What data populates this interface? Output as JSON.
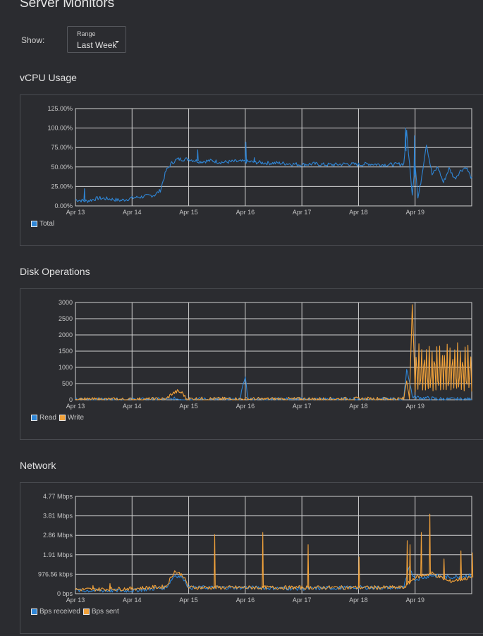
{
  "page": {
    "title": "Server Monitors"
  },
  "filter": {
    "show_label": "Show:",
    "range_caption": "Range",
    "range_value": "Last Week"
  },
  "colors": {
    "background": "#2b2c30",
    "grid": "#d0d0d0",
    "read": "#2f86d6",
    "write": "#f2a23a"
  },
  "sections": {
    "cpu": {
      "title": "vCPU Usage"
    },
    "disk": {
      "title": "Disk Operations"
    },
    "network": {
      "title": "Network"
    }
  },
  "chart_data": [
    {
      "id": "cpu",
      "type": "line",
      "x": [
        "Apr 13",
        "Apr 14",
        "Apr 15",
        "Apr 16",
        "Apr 17",
        "Apr 18",
        "Apr 19"
      ],
      "yticks": [
        "125.00%",
        "100.00%",
        "75.00%",
        "50.00%",
        "25.00%",
        "0.00%"
      ],
      "ylim": [
        0,
        125
      ],
      "grid": true,
      "legend": "bottom-left",
      "series": [
        {
          "name": "Total",
          "color": "#2f86d6",
          "points": [
            [
              0,
              8
            ],
            [
              0.2,
              6
            ],
            [
              0.4,
              10
            ],
            [
              0.6,
              9
            ],
            [
              0.8,
              7
            ],
            [
              1.0,
              10
            ],
            [
              1.2,
              12
            ],
            [
              1.4,
              14
            ],
            [
              1.5,
              20
            ],
            [
              1.6,
              45
            ],
            [
              1.7,
              55
            ],
            [
              1.8,
              60
            ],
            [
              2.0,
              60
            ],
            [
              2.2,
              57
            ],
            [
              2.4,
              58
            ],
            [
              2.6,
              56
            ],
            [
              2.8,
              57
            ],
            [
              3.0,
              57
            ],
            [
              3.2,
              56
            ],
            [
              3.4,
              55
            ],
            [
              3.6,
              55
            ],
            [
              3.8,
              54
            ],
            [
              4.0,
              53
            ],
            [
              4.2,
              54
            ],
            [
              4.4,
              53
            ],
            [
              4.6,
              53
            ],
            [
              4.8,
              54
            ],
            [
              5.0,
              53
            ],
            [
              5.2,
              54
            ],
            [
              5.4,
              53
            ],
            [
              5.6,
              53
            ],
            [
              5.8,
              54
            ],
            [
              5.85,
              95
            ],
            [
              5.9,
              55
            ],
            [
              5.95,
              15
            ],
            [
              6.0,
              55
            ],
            [
              6.05,
              10
            ],
            [
              6.1,
              30
            ],
            [
              6.2,
              80
            ],
            [
              6.3,
              40
            ],
            [
              6.4,
              50
            ],
            [
              6.5,
              30
            ],
            [
              6.6,
              48
            ],
            [
              6.7,
              35
            ],
            [
              6.8,
              45
            ],
            [
              6.9,
              50
            ],
            [
              7.0,
              35
            ]
          ],
          "spikes": [
            [
              0.15,
              22
            ],
            [
              2.15,
              72
            ],
            [
              3.0,
              82
            ],
            [
              3.15,
              62
            ],
            [
              5.82,
              100
            ],
            [
              5.98,
              90
            ]
          ]
        }
      ]
    },
    {
      "id": "disk",
      "type": "line",
      "x": [
        "Apr 13",
        "Apr 14",
        "Apr 15",
        "Apr 16",
        "Apr 17",
        "Apr 18",
        "Apr 19"
      ],
      "yticks": [
        "3000",
        "2500",
        "2000",
        "1500",
        "1000",
        "500",
        "0"
      ],
      "ylim": [
        0,
        3000
      ],
      "grid": true,
      "legend": "bottom-left",
      "series": [
        {
          "name": "Read",
          "color": "#2f86d6",
          "points": [
            [
              0,
              5
            ],
            [
              1.0,
              5
            ],
            [
              1.6,
              10
            ],
            [
              1.8,
              30
            ],
            [
              2.0,
              20
            ],
            [
              2.2,
              15
            ],
            [
              2.9,
              10
            ],
            [
              3.0,
              700
            ],
            [
              3.05,
              20
            ],
            [
              4.0,
              15
            ],
            [
              5.0,
              15
            ],
            [
              5.8,
              20
            ],
            [
              5.85,
              950
            ],
            [
              5.9,
              600
            ],
            [
              5.95,
              100
            ],
            [
              6.1,
              60
            ],
            [
              6.3,
              40
            ],
            [
              6.5,
              20
            ],
            [
              7.0,
              10
            ]
          ]
        },
        {
          "name": "Write",
          "color": "#f2a23a",
          "points": [
            [
              0,
              10
            ],
            [
              1.0,
              10
            ],
            [
              1.6,
              20
            ],
            [
              1.7,
              180
            ],
            [
              1.8,
              260
            ],
            [
              1.9,
              200
            ],
            [
              1.95,
              40
            ],
            [
              2.0,
              30
            ],
            [
              2.5,
              25
            ],
            [
              3.0,
              20
            ],
            [
              4.0,
              20
            ],
            [
              5.0,
              25
            ],
            [
              5.8,
              30
            ],
            [
              5.85,
              600
            ],
            [
              5.9,
              80
            ],
            [
              5.95,
              2900
            ],
            [
              6.0,
              400
            ],
            [
              6.5,
              400
            ],
            [
              7.0,
              400
            ]
          ],
          "oscillation": {
            "from": 6.0,
            "to": 7.0,
            "high": 1700,
            "low": 300,
            "cycles": 22
          }
        }
      ]
    },
    {
      "id": "network",
      "type": "line",
      "x": [
        "Apr 13",
        "Apr 14",
        "Apr 15",
        "Apr 16",
        "Apr 17",
        "Apr 18",
        "Apr 19"
      ],
      "yticks": [
        "4.77 Mbps",
        "3.81 Mbps",
        "2.86 Mbps",
        "1.91 Mbps",
        "976.56 kbps",
        "0 bps"
      ],
      "ylim": [
        0,
        4.77
      ],
      "grid": true,
      "legend": "bottom-left",
      "series": [
        {
          "name": "Bps received",
          "color": "#2f86d6",
          "points": [
            [
              0,
              0.15
            ],
            [
              1.0,
              0.15
            ],
            [
              1.6,
              0.3
            ],
            [
              1.75,
              0.9
            ],
            [
              1.9,
              0.8
            ],
            [
              2.0,
              0.3
            ],
            [
              3.0,
              0.3
            ],
            [
              4.0,
              0.25
            ],
            [
              5.0,
              0.3
            ],
            [
              5.8,
              0.3
            ],
            [
              5.9,
              1.3
            ],
            [
              6.0,
              0.7
            ],
            [
              6.3,
              0.9
            ],
            [
              6.6,
              0.8
            ],
            [
              7.0,
              0.9
            ]
          ]
        },
        {
          "name": "Bps sent",
          "color": "#f2a23a",
          "points": [
            [
              0,
              0.2
            ],
            [
              1.0,
              0.25
            ],
            [
              1.6,
              0.35
            ],
            [
              1.75,
              1.1
            ],
            [
              1.9,
              0.9
            ],
            [
              2.0,
              0.3
            ],
            [
              3.0,
              0.3
            ],
            [
              4.0,
              0.3
            ],
            [
              5.0,
              0.3
            ],
            [
              5.8,
              0.3
            ],
            [
              6.0,
              0.8
            ],
            [
              6.3,
              1.0
            ],
            [
              6.6,
              0.6
            ],
            [
              7.0,
              0.8
            ]
          ],
          "spikes": [
            [
              0.3,
              0.4
            ],
            [
              0.6,
              0.5
            ],
            [
              2.45,
              2.9
            ],
            [
              3.3,
              3.0
            ],
            [
              4.1,
              2.4
            ],
            [
              5.0,
              1.8
            ],
            [
              5.85,
              2.6
            ],
            [
              5.9,
              2.4
            ],
            [
              6.1,
              3.0
            ],
            [
              6.25,
              3.9
            ],
            [
              6.5,
              1.7
            ],
            [
              6.8,
              2.1
            ],
            [
              7.0,
              2.0
            ]
          ]
        }
      ]
    }
  ]
}
